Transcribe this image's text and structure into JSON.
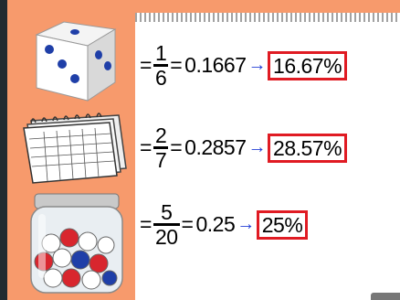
{
  "rows": [
    {
      "numerator": "1",
      "denominator": "6",
      "decimal": "0.1667",
      "percent": "16.67%"
    },
    {
      "numerator": "2",
      "denominator": "7",
      "decimal": "0.2857",
      "percent": "28.57%"
    },
    {
      "numerator": "5",
      "denominator": "20",
      "decimal": "0.25",
      "percent": "25%"
    }
  ],
  "symbols": {
    "equals": "=",
    "arrow": "→"
  },
  "colors": {
    "background": "#f79a6c",
    "highlight_box": "#e01b23",
    "arrow": "#2440d6"
  },
  "illustrations": [
    "dice",
    "calendar",
    "marble-jar"
  ]
}
